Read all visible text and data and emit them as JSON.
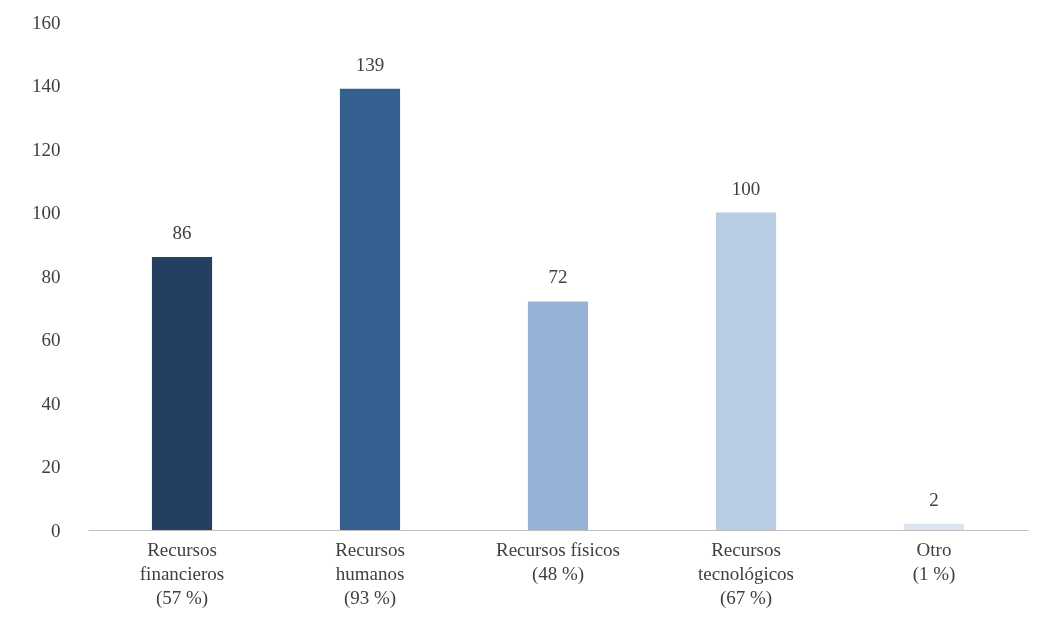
{
  "chart_data": {
    "type": "bar",
    "categories": [
      "Recursos\nfinancieros\n(57 %)",
      "Recursos\nhumanos\n(93 %)",
      "Recursos físicos\n(48 %)",
      "Recursos\ntecnológicos\n(67 %)",
      "Otro\n(1 %)"
    ],
    "values": [
      86,
      139,
      72,
      100,
      2
    ],
    "colors": [
      "#243f60",
      "#355f8f",
      "#95b3d7",
      "#b8cce4",
      "#dce6f1"
    ],
    "ylim": [
      0,
      160
    ],
    "yticks": [
      0,
      20,
      40,
      60,
      80,
      100,
      120,
      140,
      160
    ],
    "grid": false,
    "legend": false,
    "data_labels": true
  }
}
